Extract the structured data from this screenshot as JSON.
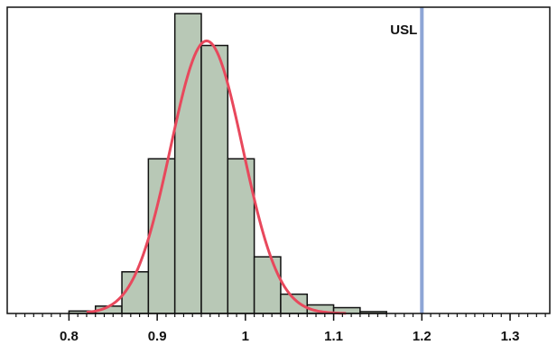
{
  "chart_data": {
    "type": "bar",
    "title": "",
    "xlabel": "",
    "ylabel": "",
    "xlim": [
      0.73,
      1.345
    ],
    "ylim": [
      0,
      100
    ],
    "bin_width": 0.03,
    "bins": [
      {
        "start": 0.8,
        "end": 0.83,
        "value": 0.8
      },
      {
        "start": 0.83,
        "end": 0.86,
        "value": 2.4
      },
      {
        "start": 0.86,
        "end": 0.89,
        "value": 13.6
      },
      {
        "start": 0.89,
        "end": 0.92,
        "value": 50.5
      },
      {
        "start": 0.92,
        "end": 0.95,
        "value": 97.9
      },
      {
        "start": 0.95,
        "end": 0.98,
        "value": 87.5
      },
      {
        "start": 0.98,
        "end": 1.01,
        "value": 50.5
      },
      {
        "start": 1.01,
        "end": 1.04,
        "value": 18.5
      },
      {
        "start": 1.04,
        "end": 1.07,
        "value": 6.3
      },
      {
        "start": 1.07,
        "end": 1.1,
        "value": 2.8
      },
      {
        "start": 1.1,
        "end": 1.13,
        "value": 1.9
      },
      {
        "start": 1.13,
        "end": 1.16,
        "value": 0.6
      }
    ],
    "x_ticks": [
      "0.8",
      "0.9",
      "1",
      "1.1",
      "1.2",
      "1.3"
    ],
    "x_tick_values": [
      0.8,
      0.9,
      1.0,
      1.1,
      1.2,
      1.3
    ],
    "curve": {
      "type": "normal",
      "mean": 0.956,
      "sd": 0.041,
      "peak": 89
    },
    "reference_line": {
      "label": "USL",
      "x": 1.2
    },
    "grid": false,
    "colors": {
      "bar_fill": "#b8c8b6",
      "bar_stroke": "#111111",
      "curve": "#e8485c",
      "reference_line": "#8ea6d6",
      "frame": "#111111"
    }
  }
}
